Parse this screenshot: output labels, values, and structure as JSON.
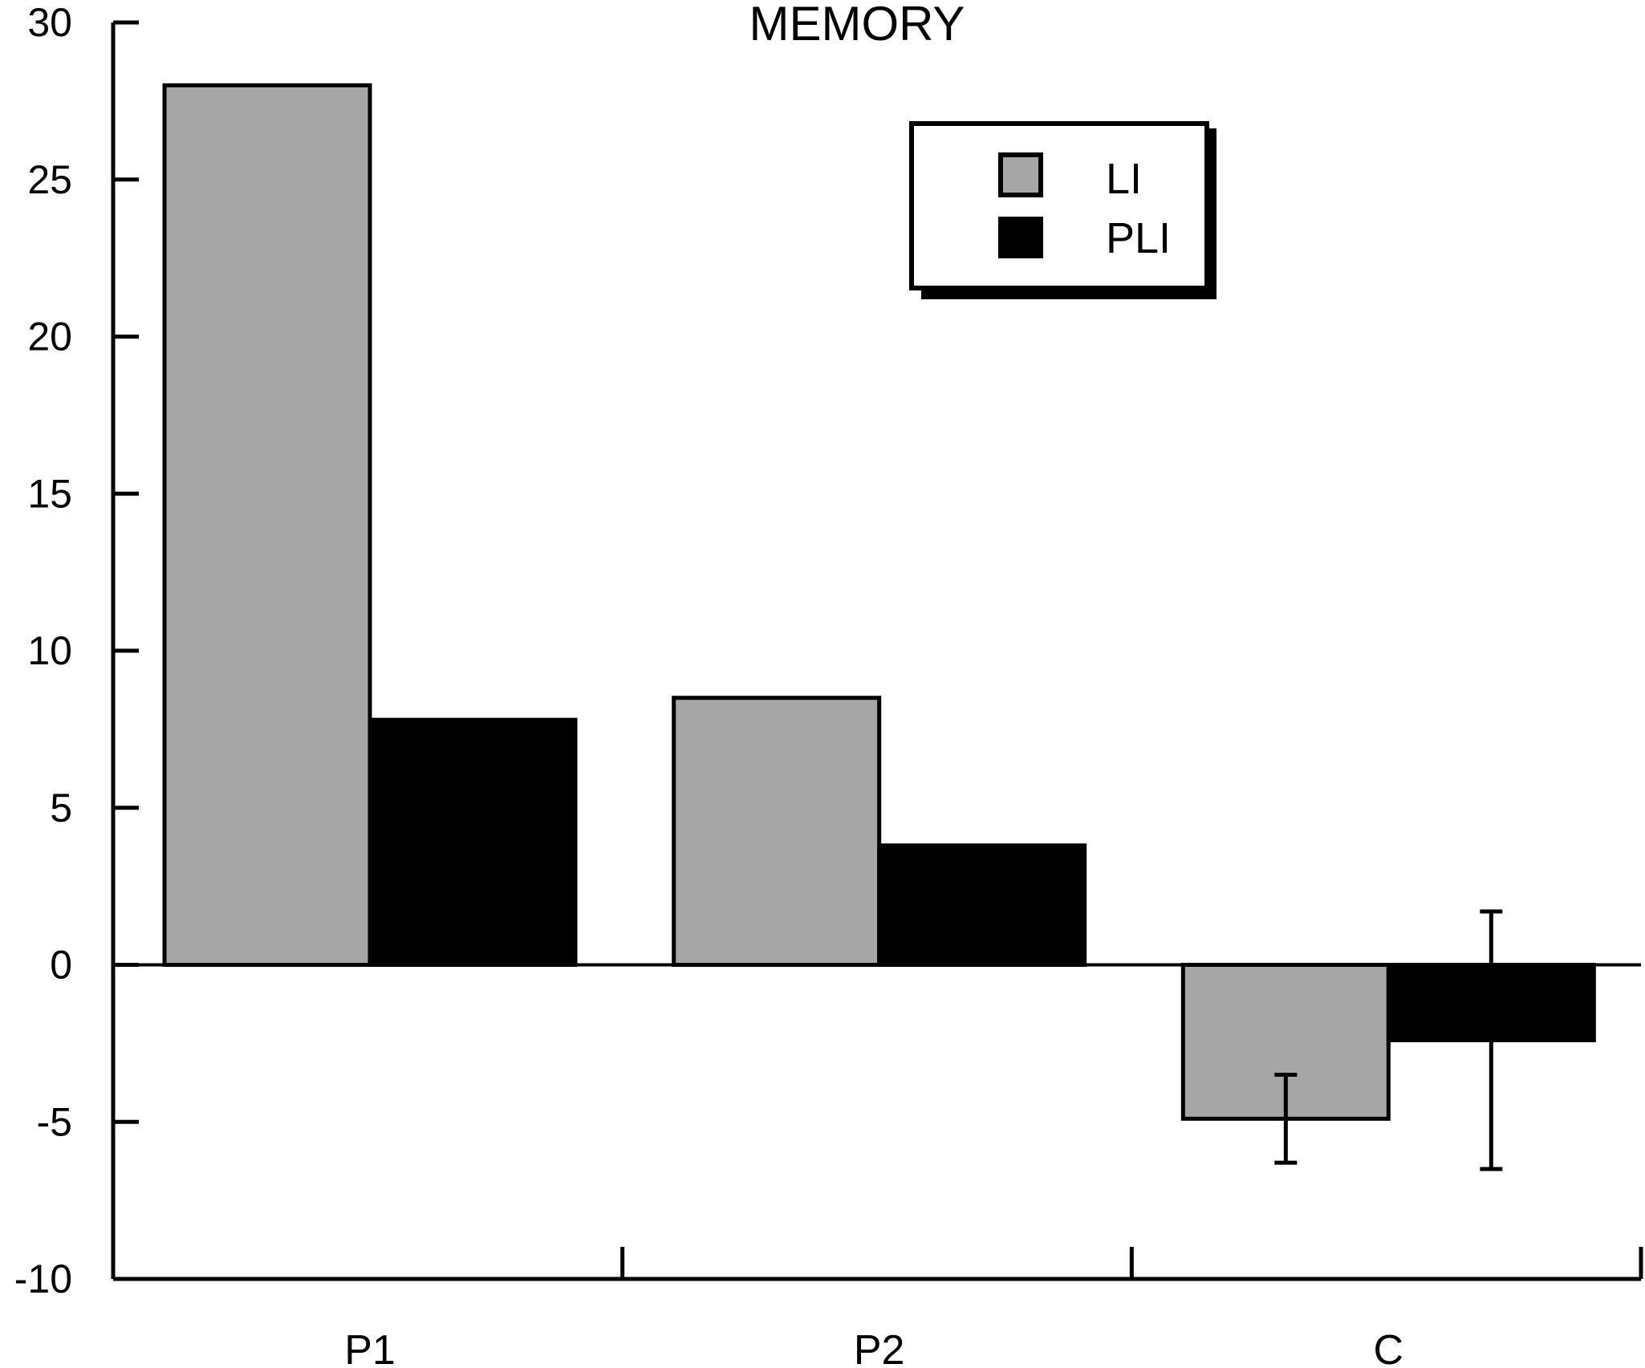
{
  "chart_data": {
    "type": "bar",
    "title": "MEMORY",
    "xlabel": "",
    "ylabel": "",
    "categories": [
      "P1",
      "P2",
      "C"
    ],
    "series": [
      {
        "name": "LI",
        "color": "#a6a6a6",
        "values": [
          28.0,
          8.5,
          -4.9
        ],
        "error": [
          null,
          null,
          1.4
        ]
      },
      {
        "name": "PLI",
        "color": "#000000",
        "values": [
          7.8,
          3.8,
          -2.4
        ],
        "error": [
          null,
          null,
          4.1
        ]
      }
    ],
    "ylim": [
      -10,
      30
    ],
    "yticks": [
      30,
      25,
      20,
      15,
      10,
      5,
      0,
      -5,
      -10
    ],
    "ytick_labels": [
      "30",
      "25",
      "20",
      "15",
      "10",
      "5",
      "0",
      "-5",
      "-10"
    ],
    "grid": false,
    "legend_position": "top-right",
    "legend_text_colors": [
      "#a6a6a6",
      "#000000"
    ]
  }
}
